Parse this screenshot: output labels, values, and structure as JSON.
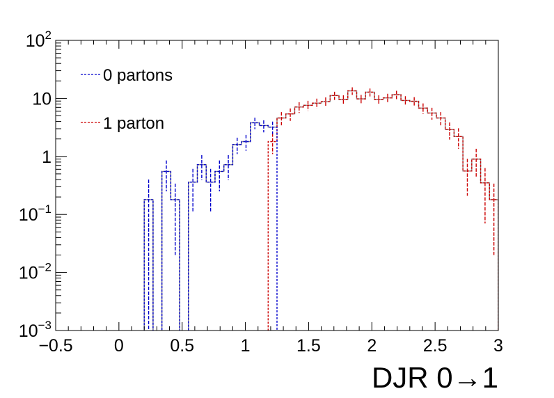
{
  "chart_data": {
    "type": "histogram",
    "xlabel": "DJR 0→1",
    "xlim": [
      -0.5,
      3.0
    ],
    "ylim": [
      0.001,
      100
    ],
    "yscale": "log",
    "grid": false,
    "legend_position": "top-left",
    "x_ticks": [
      "−0.5",
      "0",
      "0.5",
      "1",
      "1.5",
      "2",
      "2.5",
      "3"
    ],
    "y_ticks": [
      {
        "base": "10",
        "exp": "−3"
      },
      {
        "base": "10",
        "exp": "−2"
      },
      {
        "base": "10",
        "exp": "−1"
      },
      {
        "base": "1",
        "exp": ""
      },
      {
        "base": "10",
        "exp": ""
      },
      {
        "base": "10",
        "exp": "2"
      }
    ],
    "bin_width": 0.07,
    "x_start": -0.5,
    "series": [
      {
        "name": "0 partons",
        "color": "#0000cc",
        "values": [
          0,
          0,
          0,
          0,
          0,
          0,
          0,
          0,
          0,
          0,
          0.18,
          0,
          0.55,
          0.18,
          0,
          0.36,
          0.72,
          0.36,
          0.55,
          0.72,
          1.6,
          1.8,
          3.8,
          3.4,
          3.2,
          0,
          0,
          0,
          0,
          0,
          0,
          0,
          0,
          0,
          0,
          0,
          0,
          0,
          0,
          0,
          0,
          0,
          0,
          0,
          0,
          0,
          0,
          0,
          0,
          0
        ],
        "errors": [
          0,
          0,
          0,
          0,
          0,
          0,
          0,
          0,
          0,
          0,
          0.22,
          0,
          0.3,
          0.16,
          0,
          0.25,
          0.33,
          0.25,
          0.3,
          0.33,
          0.5,
          0.55,
          0.85,
          0.8,
          0.78,
          0,
          0,
          0,
          0,
          0,
          0,
          0,
          0,
          0,
          0,
          0,
          0,
          0,
          0,
          0,
          0,
          0,
          0,
          0,
          0,
          0,
          0,
          0,
          0,
          0
        ]
      },
      {
        "name": "1 parton",
        "color": "#cc0000",
        "values": [
          0,
          0,
          0,
          0,
          0,
          0,
          0,
          0,
          0,
          0,
          0,
          0,
          0,
          0,
          0,
          0,
          0,
          0,
          0,
          0,
          0,
          0,
          0,
          0,
          1.8,
          4.6,
          5.4,
          7.1,
          7.6,
          8.3,
          8.8,
          11.2,
          9.6,
          13.5,
          9.8,
          12.8,
          9.6,
          10.2,
          11.6,
          9.2,
          8.9,
          6.8,
          5.6,
          4.6,
          2.9,
          2.2,
          0.56,
          0.9,
          0.35,
          0.18
        ],
        "errors": [
          0,
          0,
          0,
          0,
          0,
          0,
          0,
          0,
          0,
          0,
          0,
          0,
          0,
          0,
          0,
          0,
          0,
          0,
          0,
          0,
          0,
          0,
          0,
          0,
          0.7,
          1.2,
          1.3,
          1.5,
          1.5,
          1.6,
          1.6,
          1.8,
          1.7,
          2.0,
          1.7,
          2.0,
          1.7,
          1.8,
          1.9,
          1.7,
          1.6,
          1.4,
          1.3,
          1.2,
          0.95,
          0.85,
          0.35,
          0.45,
          0.28,
          0.16
        ]
      },
      {
        "name": "",
        "color": "#888888",
        "values": [
          0,
          0,
          0,
          0,
          0,
          0,
          0,
          0,
          0,
          0,
          0.18,
          0,
          0.55,
          0.18,
          0,
          0.36,
          0.72,
          0.36,
          0.55,
          0.72,
          1.6,
          1.8,
          3.8,
          3.4,
          3.2,
          4.6,
          5.4,
          7.1,
          7.6,
          8.3,
          8.8,
          11.2,
          9.6,
          13.5,
          9.8,
          12.8,
          9.6,
          10.2,
          11.6,
          9.2,
          8.9,
          6.8,
          5.6,
          4.6,
          2.9,
          2.2,
          0.56,
          0.9,
          0.35,
          0.18
        ]
      }
    ]
  }
}
